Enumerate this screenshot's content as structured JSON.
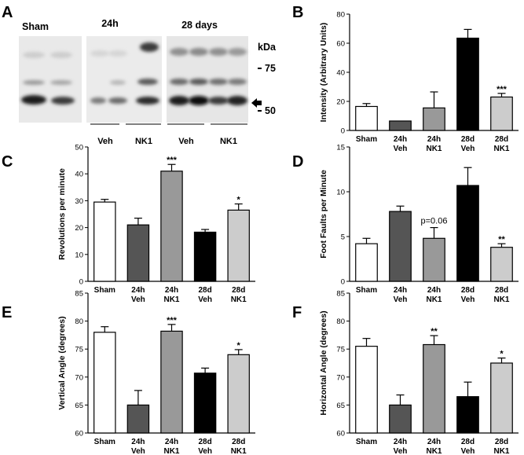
{
  "panel_labels": {
    "a": "A",
    "b": "B",
    "c": "C",
    "d": "D",
    "e": "E",
    "f": "F"
  },
  "blot": {
    "group_labels": [
      "Sham",
      "24h",
      "28 days"
    ],
    "unit_label": "kDa",
    "markers": [
      "75",
      "50"
    ],
    "lane_labels": [
      "Veh",
      "NK1",
      "Veh",
      "NK1"
    ]
  },
  "chart_data": [
    {
      "panel": "B",
      "type": "bar",
      "ylabel": "Intensity (Arbitrary Units)",
      "ylim": [
        0,
        80
      ],
      "yticks": [
        "0",
        "20",
        "40",
        "60",
        "80"
      ],
      "categories": [
        [
          "Sham",
          ""
        ],
        [
          "24h",
          "Veh"
        ],
        [
          "24h",
          "NK1"
        ],
        [
          "28d",
          "Veh"
        ],
        [
          "28d",
          "NK1"
        ]
      ],
      "values": [
        16.5,
        6.5,
        15.5,
        63.5,
        23
      ],
      "errors": [
        2,
        0,
        11,
        6,
        2.5
      ],
      "fills": [
        "#ffffff",
        "#555555",
        "#999999",
        "#000000",
        "#cccccc"
      ],
      "annotations": [
        "",
        "",
        "",
        "",
        "***"
      ]
    },
    {
      "panel": "C",
      "type": "bar",
      "ylabel": "Revolutions per minute",
      "ylim": [
        0,
        50
      ],
      "yticks": [
        "0",
        "10",
        "20",
        "30",
        "40",
        "50"
      ],
      "categories": [
        [
          "Sham",
          ""
        ],
        [
          "24h",
          "Veh"
        ],
        [
          "24h",
          "NK1"
        ],
        [
          "28d",
          "Veh"
        ],
        [
          "28d",
          "NK1"
        ]
      ],
      "values": [
        29.5,
        21,
        41,
        18.3,
        26.5
      ],
      "errors": [
        1,
        2.5,
        2.5,
        1,
        2.3
      ],
      "fills": [
        "#ffffff",
        "#555555",
        "#999999",
        "#000000",
        "#cccccc"
      ],
      "annotations": [
        "",
        "",
        "***",
        "",
        "*"
      ]
    },
    {
      "panel": "D",
      "type": "bar",
      "ylabel": "Foot Faults per Minute",
      "ylim": [
        0,
        15
      ],
      "yticks": [
        "0",
        "5",
        "10",
        "15"
      ],
      "categories": [
        [
          "Sham",
          ""
        ],
        [
          "24h",
          "Veh"
        ],
        [
          "24h",
          "NK1"
        ],
        [
          "28d",
          "Veh"
        ],
        [
          "28d",
          "NK1"
        ]
      ],
      "values": [
        4.2,
        7.8,
        4.8,
        10.7,
        3.8
      ],
      "errors": [
        0.6,
        0.6,
        1.2,
        2,
        0.4
      ],
      "fills": [
        "#ffffff",
        "#555555",
        "#999999",
        "#000000",
        "#cccccc"
      ],
      "annotations": [
        "",
        "",
        "p=0.06",
        "",
        "**"
      ]
    },
    {
      "panel": "E",
      "type": "bar",
      "ylabel": "Vertical Angle (degrees)",
      "ylim": [
        60,
        85
      ],
      "yticks": [
        "60",
        "65",
        "70",
        "75",
        "80",
        "85"
      ],
      "categories": [
        [
          "Sham",
          ""
        ],
        [
          "24h",
          "Veh"
        ],
        [
          "24h",
          "NK1"
        ],
        [
          "28d",
          "Veh"
        ],
        [
          "28d",
          "NK1"
        ]
      ],
      "values": [
        78,
        65,
        78.2,
        70.7,
        74
      ],
      "errors": [
        1,
        2.6,
        1.2,
        0.9,
        0.9
      ],
      "fills": [
        "#ffffff",
        "#555555",
        "#999999",
        "#000000",
        "#cccccc"
      ],
      "annotations": [
        "",
        "",
        "***",
        "",
        "*"
      ]
    },
    {
      "panel": "F",
      "type": "bar",
      "ylabel": "Horizontal Angle (degrees)",
      "ylim": [
        60,
        85
      ],
      "yticks": [
        "60",
        "65",
        "70",
        "75",
        "80",
        "85"
      ],
      "categories": [
        [
          "Sham",
          ""
        ],
        [
          "24h",
          "Veh"
        ],
        [
          "24h",
          "NK1"
        ],
        [
          "28d",
          "Veh"
        ],
        [
          "28d",
          "NK1"
        ]
      ],
      "values": [
        75.5,
        65,
        75.8,
        66.5,
        72.5
      ],
      "errors": [
        1.4,
        1.8,
        1.6,
        2.6,
        0.9
      ],
      "fills": [
        "#ffffff",
        "#555555",
        "#999999",
        "#000000",
        "#cccccc"
      ],
      "annotations": [
        "",
        "",
        "**",
        "",
        "*"
      ]
    }
  ]
}
